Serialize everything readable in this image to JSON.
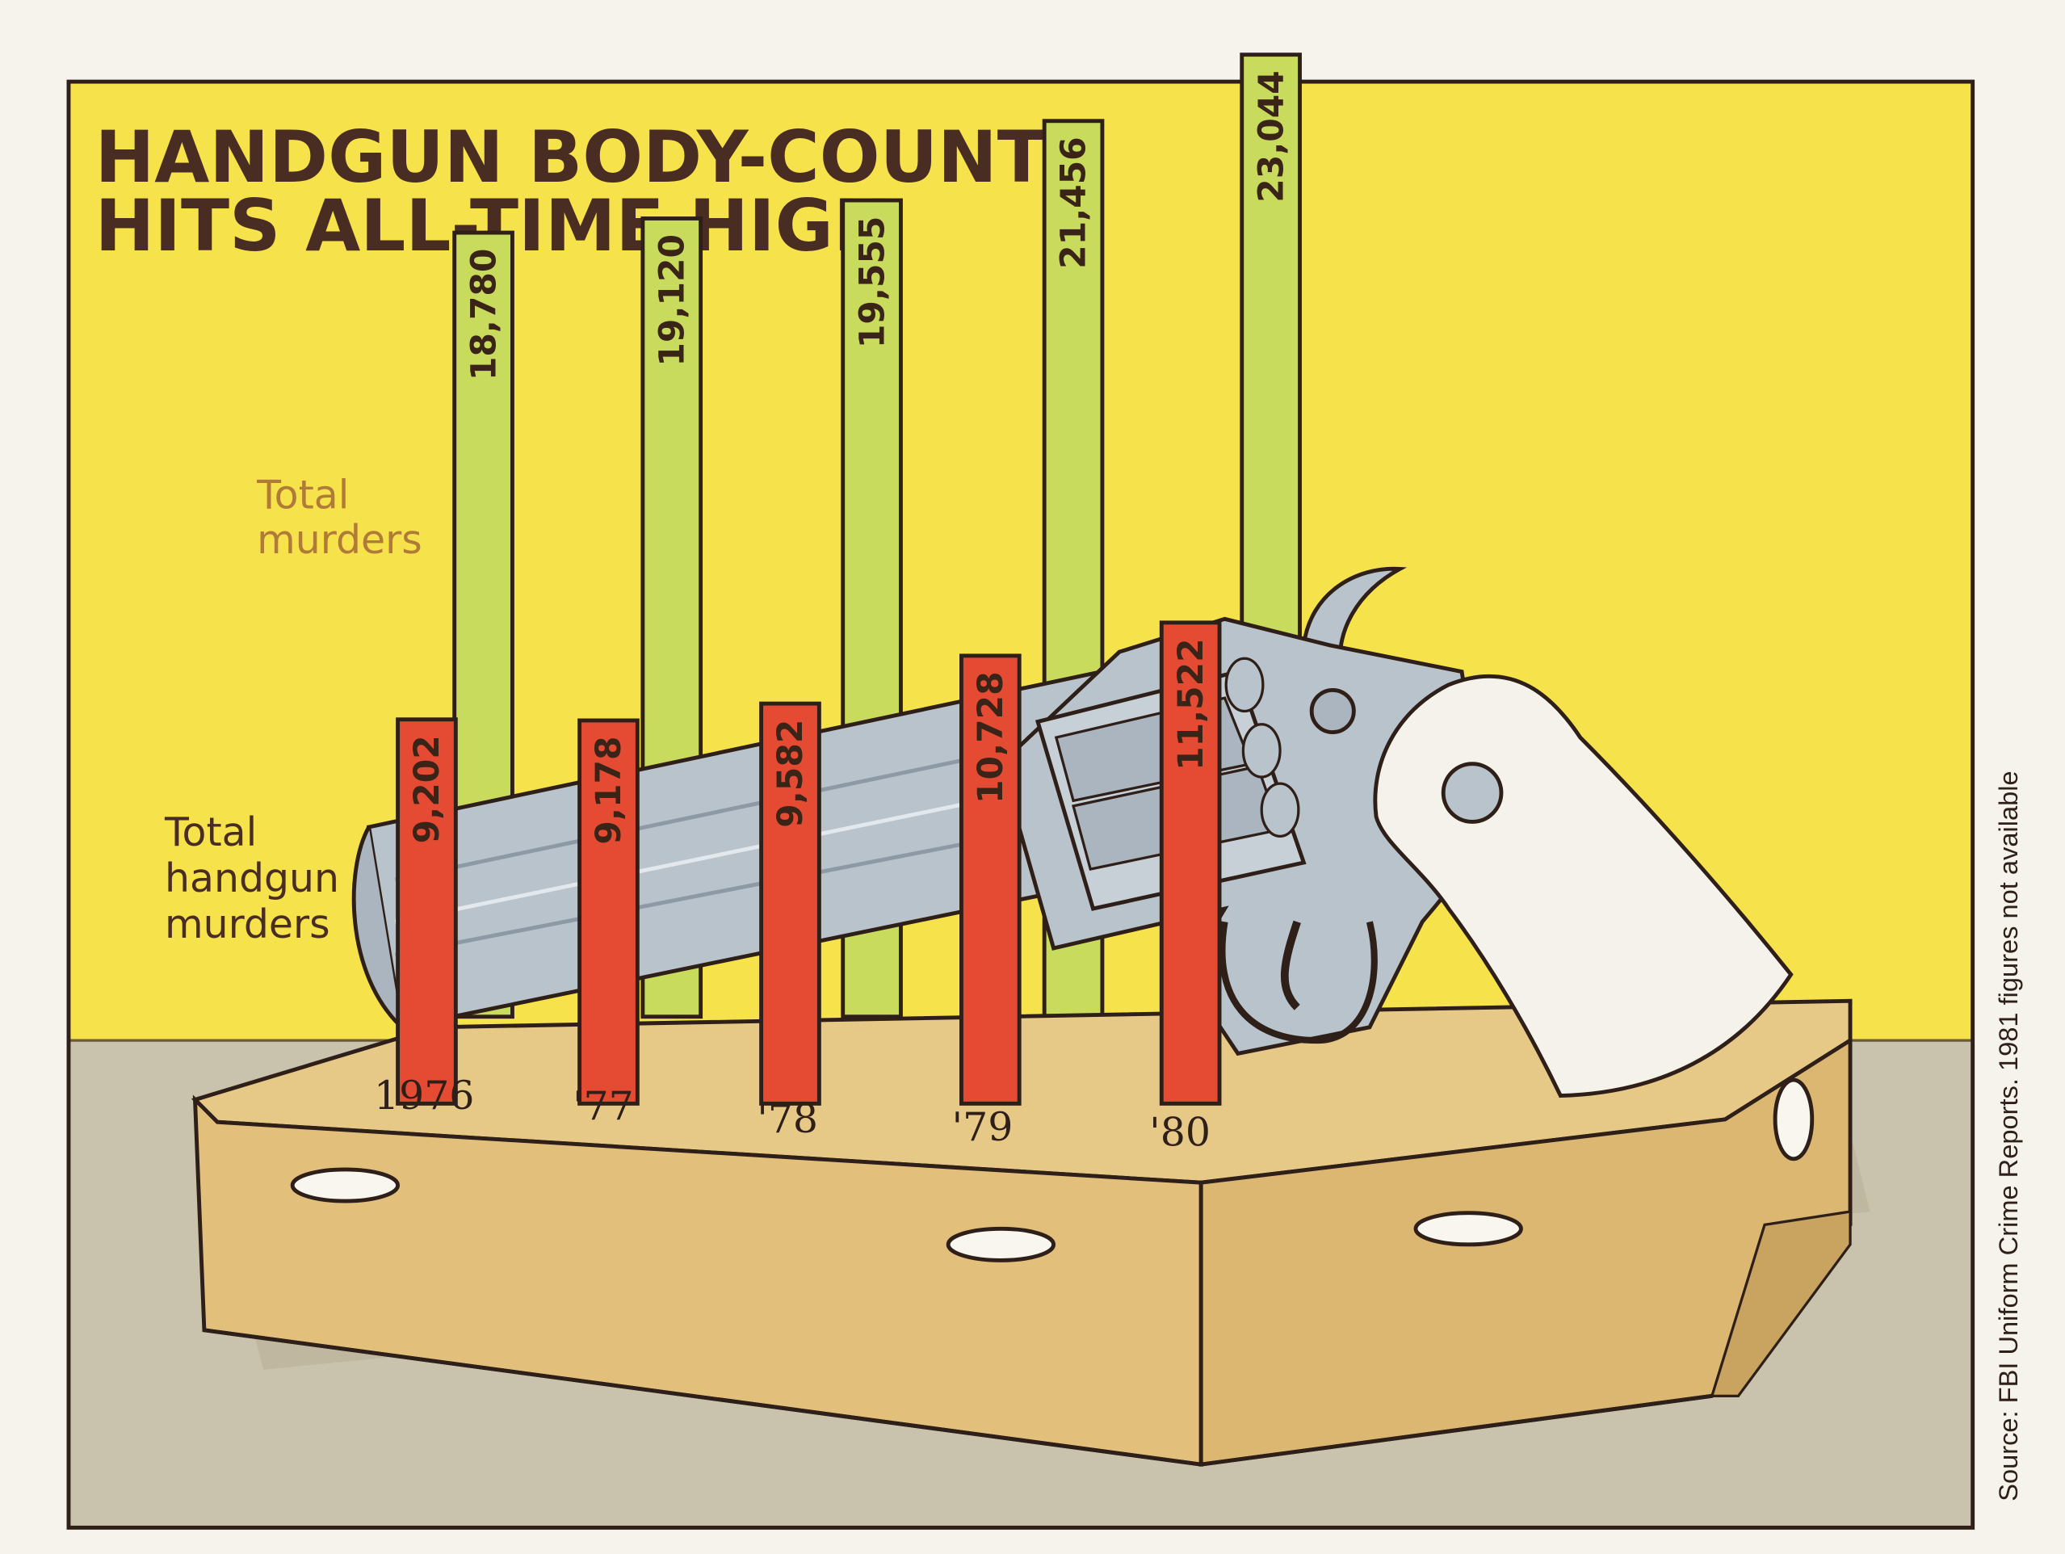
{
  "chart_data": {
    "type": "bar",
    "title": "HANDGUN BODY-COUNT HITS ALL-TIME HIGH",
    "title_lines": [
      "HANDGUN BODY-COUNT",
      "HITS ALL-TIME HIGH"
    ],
    "categories": [
      "1976",
      "'77",
      "'78",
      "'79",
      "'80"
    ],
    "series": [
      {
        "name": "Total murders",
        "name_lines": [
          "Total",
          "murders"
        ],
        "color": "#c8db5c",
        "values": [
          18780,
          19120,
          19555,
          21456,
          23044
        ],
        "labels": [
          "18,780",
          "19,120",
          "19,555",
          "21,456",
          "23,044"
        ]
      },
      {
        "name": "Total handgun murders",
        "name_lines": [
          "Total",
          "handgun",
          "murders"
        ],
        "color": "#e54b33",
        "values": [
          9202,
          9178,
          9582,
          10728,
          11522
        ],
        "labels": [
          "9,202",
          "9,178",
          "9,582",
          "10,728",
          "11,522"
        ]
      }
    ],
    "source": "Source: FBI Uniform Crime Reports. 1981 figures not available",
    "colors": {
      "background_wall": "#f6e24a",
      "floor": "#c9c2ac",
      "coffin": "#e6c887",
      "gun": "#b9c3cc",
      "grip": "#f4f2ea"
    }
  }
}
